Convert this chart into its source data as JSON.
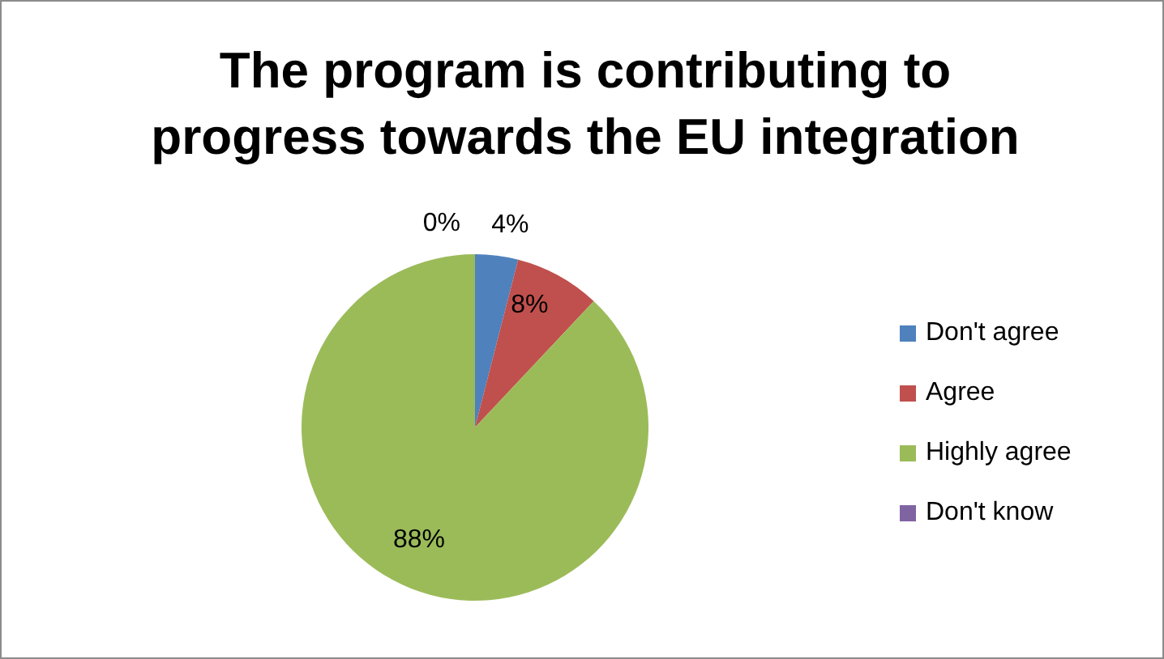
{
  "chart_data": {
    "type": "pie",
    "title": "The program is contributing to progress towards the EU integration",
    "categories": [
      "Don't agree",
      "Agree",
      "Highly agree",
      "Don't know"
    ],
    "values": [
      4,
      8,
      88,
      0
    ],
    "value_labels": [
      "4%",
      "8%",
      "88%",
      "0%"
    ],
    "colors": [
      "#4f81bd",
      "#c0504d",
      "#9bbb59",
      "#8064a2"
    ],
    "legend": "right"
  }
}
